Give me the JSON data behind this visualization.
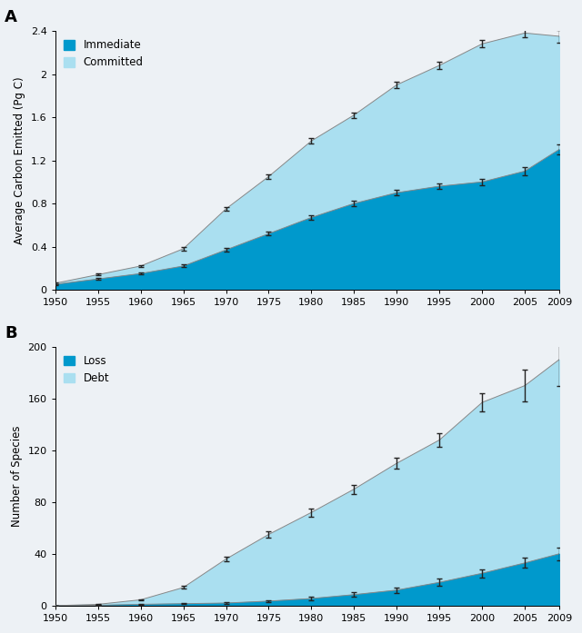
{
  "years": [
    1950,
    1955,
    1960,
    1965,
    1970,
    1975,
    1980,
    1985,
    1990,
    1995,
    2000,
    2005,
    2009
  ],
  "panel_A": {
    "total_committed": [
      0.06,
      0.14,
      0.22,
      0.38,
      0.75,
      1.05,
      1.38,
      1.62,
      1.9,
      2.08,
      2.28,
      2.38,
      2.35
    ],
    "immediate": [
      0.05,
      0.1,
      0.15,
      0.22,
      0.37,
      0.52,
      0.67,
      0.8,
      0.9,
      0.96,
      1.0,
      1.1,
      1.3
    ],
    "total_err": [
      0.005,
      0.008,
      0.01,
      0.015,
      0.02,
      0.022,
      0.025,
      0.025,
      0.028,
      0.03,
      0.035,
      0.04,
      0.06
    ],
    "imm_err": [
      0.005,
      0.008,
      0.01,
      0.012,
      0.015,
      0.018,
      0.02,
      0.022,
      0.025,
      0.025,
      0.03,
      0.035,
      0.045
    ],
    "ylabel": "Average Carbon Emitted (Pg C)",
    "ylim": [
      0,
      2.4
    ],
    "yticks": [
      0,
      0.4,
      0.8,
      1.2,
      1.6,
      2.0,
      2.4
    ],
    "label": "A"
  },
  "panel_B": {
    "total_debt": [
      0.0,
      1.0,
      4.5,
      14.0,
      36.0,
      55.0,
      72.0,
      90.0,
      110.0,
      128.0,
      157.0,
      170.0,
      190.0
    ],
    "loss": [
      0.0,
      0.3,
      1.0,
      1.5,
      2.0,
      3.5,
      5.5,
      8.5,
      12.0,
      18.0,
      25.0,
      33.0,
      40.0
    ],
    "debt_err": [
      0.0,
      0.3,
      0.5,
      1.0,
      2.0,
      2.5,
      3.0,
      3.5,
      4.5,
      5.5,
      7.0,
      12.0,
      20.0
    ],
    "loss_err": [
      0.0,
      0.2,
      0.3,
      0.4,
      0.5,
      0.8,
      1.2,
      1.8,
      2.2,
      2.8,
      3.2,
      3.8,
      5.0
    ],
    "ylabel": "Number of Species",
    "ylim": [
      0,
      200
    ],
    "yticks": [
      0,
      40,
      80,
      120,
      160,
      200
    ],
    "label": "B"
  },
  "color_dark_blue": "#0099CC",
  "color_light_blue": "#AADFF0",
  "color_background": "#EDF1F5",
  "color_plot_bg": "#EDF1F5",
  "color_error": "#222222",
  "xticks": [
    1950,
    1955,
    1960,
    1965,
    1970,
    1975,
    1980,
    1985,
    1990,
    1995,
    2000,
    2005,
    2009
  ]
}
